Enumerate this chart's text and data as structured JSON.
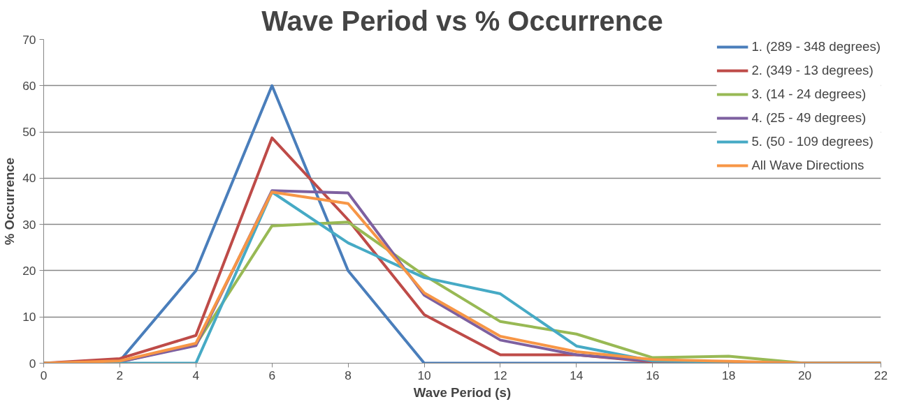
{
  "chart_data": {
    "type": "line",
    "title": "Wave Period vs % Occurrence",
    "xlabel": "Wave Period (s)",
    "ylabel": "% Occurrence",
    "x": [
      0,
      2,
      4,
      6,
      8,
      10,
      12,
      14,
      16,
      18,
      20,
      22
    ],
    "series": [
      {
        "name": "1. (289 - 348 degrees)",
        "color": "#4a7ebb",
        "values": [
          0,
          0.5,
          20,
          60,
          20,
          0,
          0,
          0,
          0,
          0,
          0,
          0
        ]
      },
      {
        "name": "2. (349 - 13 degrees)",
        "color": "#be4b48",
        "values": [
          0,
          1,
          6,
          48.7,
          31,
          10.5,
          1.8,
          1.8,
          0.3,
          0,
          0,
          0
        ]
      },
      {
        "name": "3. (14 - 24 degrees)",
        "color": "#98b954",
        "values": [
          0,
          0.3,
          4,
          29.7,
          30.5,
          19,
          9,
          6.3,
          1.2,
          1.5,
          0,
          0
        ]
      },
      {
        "name": "4. (25 - 49 degrees)",
        "color": "#7d60a0",
        "values": [
          0,
          0.3,
          3.8,
          37.3,
          36.8,
          14.7,
          5,
          1.8,
          0.5,
          0.3,
          0,
          0
        ]
      },
      {
        "name": "5. (50 - 109 degrees)",
        "color": "#46aac5",
        "values": [
          0,
          0,
          0,
          37,
          26,
          18.5,
          15,
          3.7,
          0.5,
          0.3,
          0,
          0
        ]
      },
      {
        "name": "All Wave Directions",
        "color": "#f79646",
        "values": [
          0,
          0.5,
          4.3,
          37,
          34.5,
          15.2,
          5.8,
          2.5,
          0.8,
          0.4,
          0,
          0
        ]
      }
    ],
    "xlim": [
      0,
      22
    ],
    "xticks": [
      0,
      2,
      4,
      6,
      8,
      10,
      12,
      14,
      16,
      18,
      20,
      22
    ],
    "ylim": [
      0,
      70
    ],
    "yticks": [
      0,
      10,
      20,
      30,
      40,
      50,
      60,
      70
    ],
    "grid": "y",
    "legend": "top right",
    "marker": "none",
    "line_style": "solid"
  }
}
